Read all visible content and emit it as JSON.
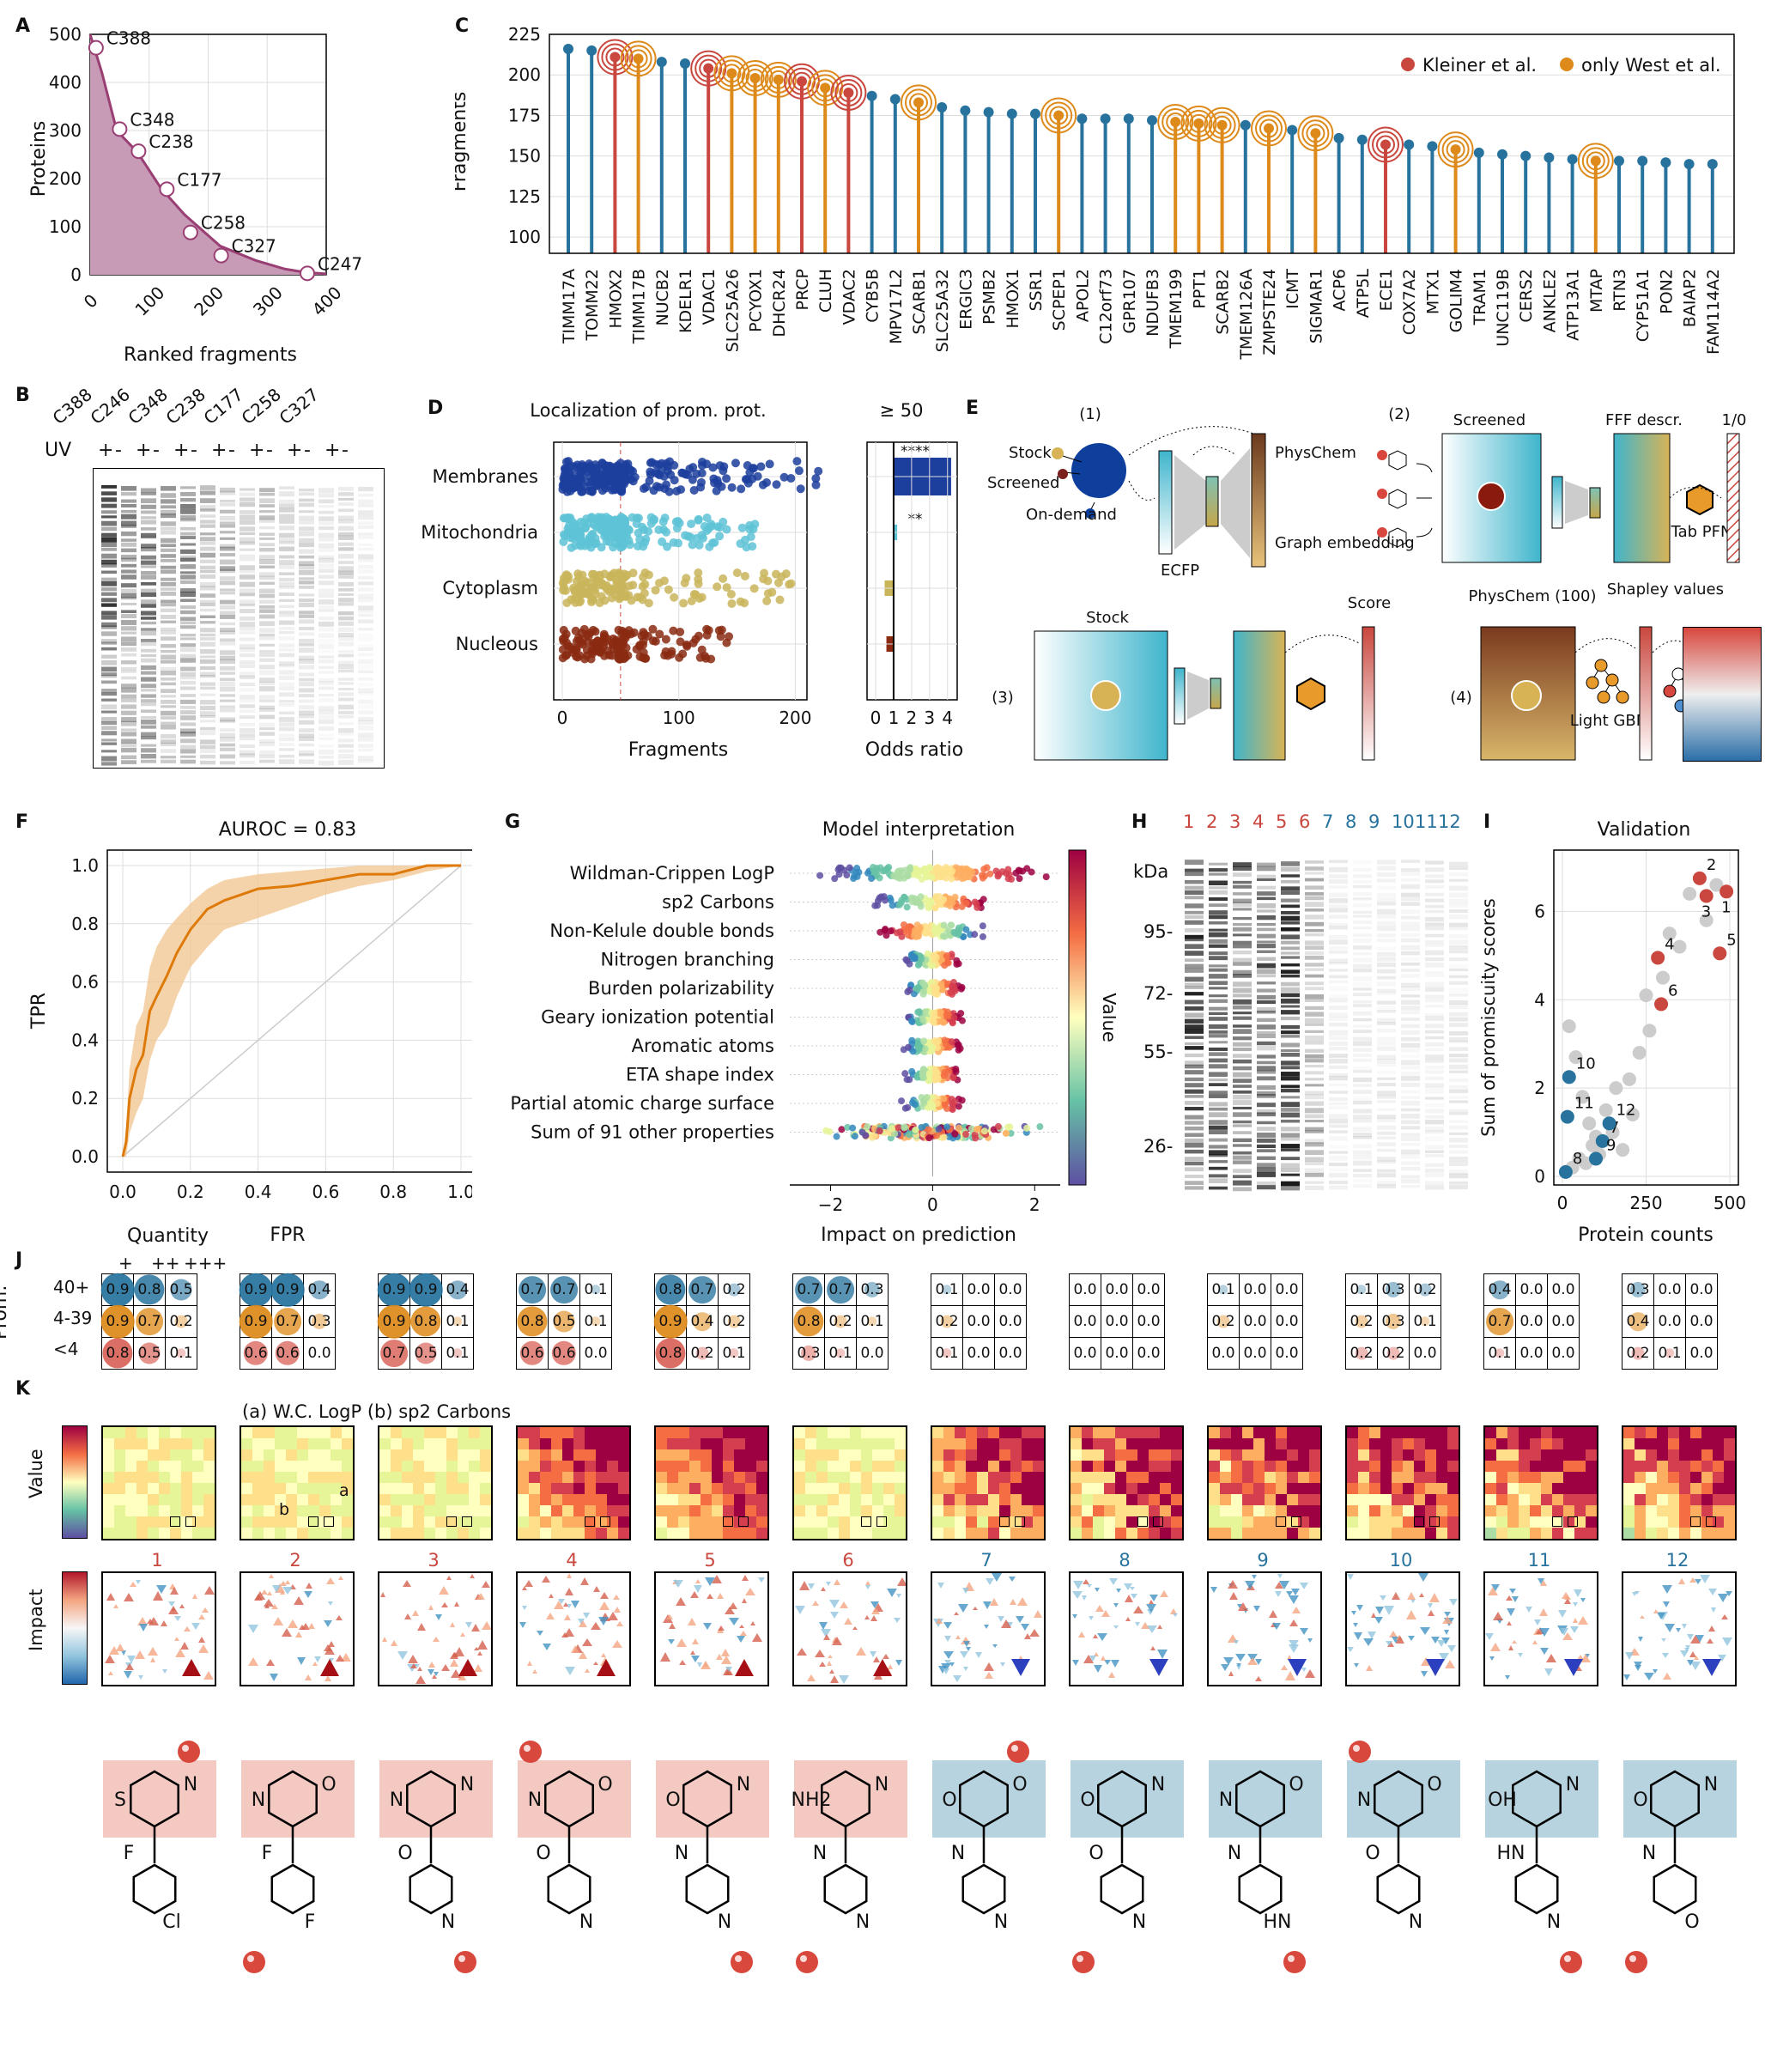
{
  "panel_labels": {
    "A": "A",
    "B": "B",
    "C": "C",
    "D": "D",
    "E": "E",
    "F": "F",
    "G": "G",
    "H": "H",
    "I": "I",
    "J": "J",
    "K": "K"
  },
  "colors": {
    "red": "#c9473e",
    "orange": "#de8a1a",
    "blue": "#27739e",
    "mauve": "#9a3f73",
    "mauve_fill": "#c79ab6"
  },
  "panel_a": {
    "chart_data": {
      "type": "area",
      "xlabel": "Ranked fragments",
      "ylabel": "Proteins",
      "xlim": [
        0,
        400
      ],
      "ylim": [
        0,
        500
      ],
      "xticks": [
        "0",
        "100",
        "200",
        "300",
        "400"
      ],
      "yticks": [
        "0",
        "100",
        "200",
        "300",
        "400",
        "500"
      ],
      "x": [
        0,
        20,
        45,
        80,
        120,
        160,
        220,
        280,
        330,
        365,
        400
      ],
      "y": [
        500,
        420,
        300,
        255,
        180,
        125,
        60,
        30,
        12,
        5,
        2
      ],
      "points": [
        {
          "label": "C388",
          "x": 10,
          "y": 472
        },
        {
          "label": "C348",
          "x": 50,
          "y": 303
        },
        {
          "label": "C238",
          "x": 82,
          "y": 257
        },
        {
          "label": "C177",
          "x": 130,
          "y": 178
        },
        {
          "label": "C258",
          "x": 170,
          "y": 88
        },
        {
          "label": "C327",
          "x": 222,
          "y": 40
        },
        {
          "label": "C247",
          "x": 368,
          "y": 3
        }
      ]
    }
  },
  "panel_b": {
    "lanes": [
      "C388",
      "C246",
      "C348",
      "C238",
      "C177",
      "C258",
      "C327"
    ],
    "uv_label": "UV",
    "uv_signs": [
      "+",
      "-"
    ]
  },
  "panel_c": {
    "chart_data": {
      "type": "bar",
      "ylabel": "Fragments",
      "ylim": [
        90,
        225
      ],
      "yticks": [
        "100",
        "125",
        "150",
        "175",
        "200",
        "225"
      ],
      "legend": [
        "Kleiner et al.",
        "only West et al."
      ],
      "legend_position": "top-right",
      "categories": [
        "TIMM17A",
        "TOMM22",
        "HMOX2",
        "TIMM17B",
        "NUCB2",
        "KDELR1",
        "VDAC1",
        "SLC25A26",
        "PCYOX1",
        "DHCR24",
        "PRCP",
        "CLUH",
        "VDAC2",
        "CYB5B",
        "MPV17L2",
        "SCARB1",
        "SLC25A32",
        "ERGIC3",
        "PSMB2",
        "HMOX1",
        "SSR1",
        "SCPEP1",
        "APOL2",
        "C12orf73",
        "GPR107",
        "NDUFB3",
        "TMEM199",
        "PPT1",
        "SCARB2",
        "TMEM126A",
        "ZMPSTE24",
        "ICMT",
        "SIGMAR1",
        "ACP6",
        "ATP5L",
        "ECE1",
        "COX7A2",
        "MTX1",
        "GOLIM4",
        "TRAM1",
        "UNC119B",
        "CERS2",
        "ANKLE2",
        "ATP13A1",
        "MTAP",
        "RTN3",
        "CYP51A1",
        "PON2",
        "BAIAP2",
        "FAM114A2"
      ],
      "values": [
        216,
        215,
        211,
        210,
        208,
        207,
        204,
        201,
        198,
        197,
        196,
        192,
        189,
        187,
        185,
        183,
        180,
        178,
        177,
        176,
        176,
        175,
        173,
        173,
        173,
        172,
        171,
        170,
        169,
        169,
        167,
        166,
        164,
        161,
        160,
        157,
        157,
        156,
        154,
        152,
        151,
        150,
        149,
        148,
        147,
        147,
        147,
        146,
        145,
        145
      ],
      "group": [
        "b",
        "b",
        "r",
        "o",
        "b",
        "b",
        "r",
        "o",
        "o",
        "o",
        "r",
        "o",
        "r",
        "b",
        "b",
        "o",
        "b",
        "b",
        "b",
        "b",
        "b",
        "o",
        "b",
        "b",
        "b",
        "b",
        "o",
        "o",
        "o",
        "b",
        "o",
        "b",
        "o",
        "b",
        "b",
        "r",
        "b",
        "b",
        "o",
        "b",
        "b",
        "b",
        "b",
        "b",
        "o",
        "b",
        "b",
        "b",
        "b",
        "b"
      ]
    }
  },
  "panel_d": {
    "title_left": "Localization of prom. prot.",
    "title_right": "≥ 50",
    "xlabel_left": "Fragments",
    "xlabel_right": "Odds ratio",
    "xticks_left": [
      "0",
      "100",
      "200"
    ],
    "xticks_right": [
      "0",
      "1",
      "2",
      "3",
      "4"
    ],
    "chart_data": {
      "type": "bar",
      "categories": [
        "Membranes",
        "Mitochondria",
        "Cytoplasm",
        "Nucleous"
      ],
      "odds_ratio": [
        4.2,
        1.2,
        0.5,
        0.6
      ],
      "significance": [
        "****",
        "**",
        "",
        ""
      ],
      "colors": [
        "#1c3e9c",
        "#5ec3d6",
        "#c9b55a",
        "#8a2a12"
      ]
    }
  },
  "panel_e": {
    "step1": {
      "num": "(1)",
      "stock": "Stock",
      "screened": "Screened",
      "ondemand": "On-demand",
      "ecfp": "ECFP",
      "physchem": "PhysChem",
      "graph": "Graph embedding"
    },
    "step2": {
      "num": "(2)",
      "screened": "Screened",
      "fff": "FFF descr.",
      "bin": "1/0",
      "tab": "Tab PFN"
    },
    "step3": {
      "num": "(3)",
      "stock": "Stock",
      "score": "Score"
    },
    "step4": {
      "num": "(4)",
      "physchem": "PhysChem (100)",
      "lgbm": "Light GBM",
      "shapley": "Shapley values"
    }
  },
  "panel_f": {
    "title": "AUROC = 0.83",
    "chart_data": {
      "type": "line",
      "xlabel": "FPR",
      "ylabel": "TPR",
      "xlim": [
        0,
        1
      ],
      "ylim": [
        0,
        1
      ],
      "xticks": [
        "0.0",
        "0.2",
        "0.4",
        "0.6",
        "0.8",
        "1.0"
      ],
      "yticks": [
        "0.0",
        "0.2",
        "0.4",
        "0.6",
        "0.8",
        "1.0"
      ],
      "x": [
        0,
        0.01,
        0.02,
        0.04,
        0.06,
        0.08,
        0.1,
        0.13,
        0.16,
        0.2,
        0.25,
        0.3,
        0.35,
        0.4,
        0.5,
        0.6,
        0.7,
        0.8,
        0.9,
        1.0
      ],
      "y": [
        0,
        0.05,
        0.2,
        0.3,
        0.35,
        0.5,
        0.55,
        0.62,
        0.7,
        0.78,
        0.85,
        0.88,
        0.9,
        0.92,
        0.93,
        0.95,
        0.97,
        0.97,
        1.0,
        1.0
      ],
      "y_low": [
        0,
        0.0,
        0.08,
        0.15,
        0.2,
        0.33,
        0.4,
        0.45,
        0.55,
        0.65,
        0.72,
        0.78,
        0.8,
        0.82,
        0.86,
        0.9,
        0.93,
        0.95,
        0.98,
        1.0
      ],
      "y_high": [
        0,
        0.1,
        0.3,
        0.45,
        0.5,
        0.65,
        0.72,
        0.78,
        0.82,
        0.87,
        0.92,
        0.95,
        0.96,
        0.97,
        0.98,
        0.99,
        1.0,
        1.0,
        1.0,
        1.0
      ]
    }
  },
  "panel_g": {
    "title": "Model interpretation",
    "xlabel": "Impact on prediction",
    "xticks": [
      "−2",
      "0",
      "2"
    ],
    "colorbar_label": "Value",
    "features": [
      "Wildman-Crippen LogP",
      "sp2 Carbons",
      "Non-Kelule double bonds",
      "Nitrogen branching",
      "Burden polarizability",
      "Geary ionization potential",
      "Aromatic atoms",
      "ETA shape index",
      "Partial atomic charge surface",
      "Sum of 91 other properties"
    ]
  },
  "panel_h": {
    "lanes": [
      "1",
      "2",
      "3",
      "4",
      "5",
      "6",
      "7",
      "8",
      "9",
      "10",
      "11",
      "12"
    ],
    "kda_label": "kDa",
    "markers": [
      "95-",
      "72-",
      "55-",
      "26-"
    ]
  },
  "panel_i": {
    "title": "Validation",
    "chart_data": {
      "type": "scatter",
      "xlabel": "Protein counts",
      "ylabel": "Sum of promiscuity scores",
      "xlim": [
        0,
        500
      ],
      "ylim": [
        0,
        7
      ],
      "xticks": [
        "0",
        "250",
        "500"
      ],
      "yticks": [
        "0",
        "2",
        "4",
        "6"
      ],
      "labeled_points": [
        {
          "label": "1",
          "x": 490,
          "y": 6.45,
          "group": "red"
        },
        {
          "label": "2",
          "x": 410,
          "y": 6.75,
          "group": "red"
        },
        {
          "label": "3",
          "x": 430,
          "y": 6.35,
          "group": "red"
        },
        {
          "label": "4",
          "x": 285,
          "y": 4.95,
          "group": "red"
        },
        {
          "label": "5",
          "x": 470,
          "y": 5.05,
          "group": "red"
        },
        {
          "label": "6",
          "x": 295,
          "y": 3.9,
          "group": "red"
        },
        {
          "label": "7",
          "x": 120,
          "y": 0.8,
          "group": "blue"
        },
        {
          "label": "8",
          "x": 10,
          "y": 0.1,
          "group": "blue"
        },
        {
          "label": "9",
          "x": 100,
          "y": 0.4,
          "group": "blue"
        },
        {
          "label": "10",
          "x": 20,
          "y": 2.25,
          "group": "blue"
        },
        {
          "label": "11",
          "x": 15,
          "y": 1.35,
          "group": "blue"
        },
        {
          "label": "12",
          "x": 140,
          "y": 1.2,
          "group": "blue"
        }
      ],
      "grey_points_x": [
        20,
        40,
        60,
        80,
        100,
        130,
        160,
        200,
        230,
        260,
        300,
        350,
        380,
        430,
        460,
        150,
        180,
        210,
        50,
        70,
        90,
        110,
        30,
        250,
        320
      ],
      "grey_points_y": [
        3.4,
        2.7,
        1.8,
        1.2,
        0.9,
        1.5,
        2.0,
        2.2,
        2.8,
        3.3,
        4.5,
        5.2,
        6.4,
        5.8,
        6.6,
        1.0,
        0.6,
        1.4,
        0.4,
        0.3,
        0.7,
        0.5,
        0.2,
        4.1,
        5.5
      ]
    }
  },
  "panel_j": {
    "quantity_label": "Quantity",
    "quantity_levels": [
      "+",
      "++",
      "+++"
    ],
    "prom_label": "Prom.",
    "row_labels": [
      "40+",
      "4-39",
      "<4"
    ],
    "grids": [
      [
        [
          "0.9",
          "0.8",
          "0.5"
        ],
        [
          "0.9",
          "0.7",
          "0.2"
        ],
        [
          "0.8",
          "0.5",
          "0.1"
        ]
      ],
      [
        [
          "0.9",
          "0.9",
          "0.4"
        ],
        [
          "0.9",
          "0.7",
          "0.3"
        ],
        [
          "0.6",
          "0.6",
          "0.0"
        ]
      ],
      [
        [
          "0.9",
          "0.9",
          "0.4"
        ],
        [
          "0.9",
          "0.8",
          "0.1"
        ],
        [
          "0.7",
          "0.5",
          "0.1"
        ]
      ],
      [
        [
          "0.7",
          "0.7",
          "0.1"
        ],
        [
          "0.8",
          "0.5",
          "0.1"
        ],
        [
          "0.6",
          "0.6",
          "0.0"
        ]
      ],
      [
        [
          "0.8",
          "0.7",
          "0.2"
        ],
        [
          "0.9",
          "0.4",
          "0.2"
        ],
        [
          "0.8",
          "0.2",
          "0.1"
        ]
      ],
      [
        [
          "0.7",
          "0.7",
          "0.3"
        ],
        [
          "0.8",
          "0.2",
          "0.1"
        ],
        [
          "0.3",
          "0.1",
          "0.0"
        ]
      ],
      [
        [
          "0.1",
          "0.0",
          "0.0"
        ],
        [
          "0.2",
          "0.0",
          "0.0"
        ],
        [
          "0.1",
          "0.0",
          "0.0"
        ]
      ],
      [
        [
          "0.0",
          "0.0",
          "0.0"
        ],
        [
          "0.0",
          "0.0",
          "0.0"
        ],
        [
          "0.0",
          "0.0",
          "0.0"
        ]
      ],
      [
        [
          "0.1",
          "0.0",
          "0.0"
        ],
        [
          "0.2",
          "0.0",
          "0.0"
        ],
        [
          "0.0",
          "0.0",
          "0.0"
        ]
      ],
      [
        [
          "0.1",
          "0.3",
          "0.2"
        ],
        [
          "0.2",
          "0.3",
          "0.1"
        ],
        [
          "0.2",
          "0.2",
          "0.0"
        ]
      ],
      [
        [
          "0.4",
          "0.0",
          "0.0"
        ],
        [
          "0.7",
          "0.0",
          "0.0"
        ],
        [
          "0.1",
          "0.0",
          "0.0"
        ]
      ],
      [
        [
          "0.3",
          "0.0",
          "0.0"
        ],
        [
          "0.4",
          "0.0",
          "0.0"
        ],
        [
          "0.2",
          "0.1",
          "0.0"
        ]
      ]
    ]
  },
  "panel_k": {
    "legend": "(a) W.C. LogP (b) sp2 Carbons",
    "value_label": "Value",
    "impact_label": "Impact",
    "a_label": "a",
    "b_label": "b",
    "compound_numbers": [
      "1",
      "2",
      "3",
      "4",
      "5",
      "6",
      "7",
      "8",
      "9",
      "10",
      "11",
      "12"
    ],
    "structure_labels": [
      "S",
      "N",
      "Cl",
      "F",
      "N",
      "O",
      "F",
      "F",
      "N",
      "N",
      "N",
      "O",
      "N",
      "O",
      "N",
      "O",
      "O",
      "N",
      "N",
      "N",
      "NH2",
      "N",
      "N",
      "N",
      "O",
      "O",
      "N",
      "N",
      "O",
      "N",
      "N",
      "O",
      "N",
      "O",
      "HN",
      "N",
      "N",
      "O",
      "N",
      "O",
      "OH",
      "N",
      "N",
      "HN",
      "O",
      "N",
      "O",
      "N",
      "HN"
    ]
  }
}
